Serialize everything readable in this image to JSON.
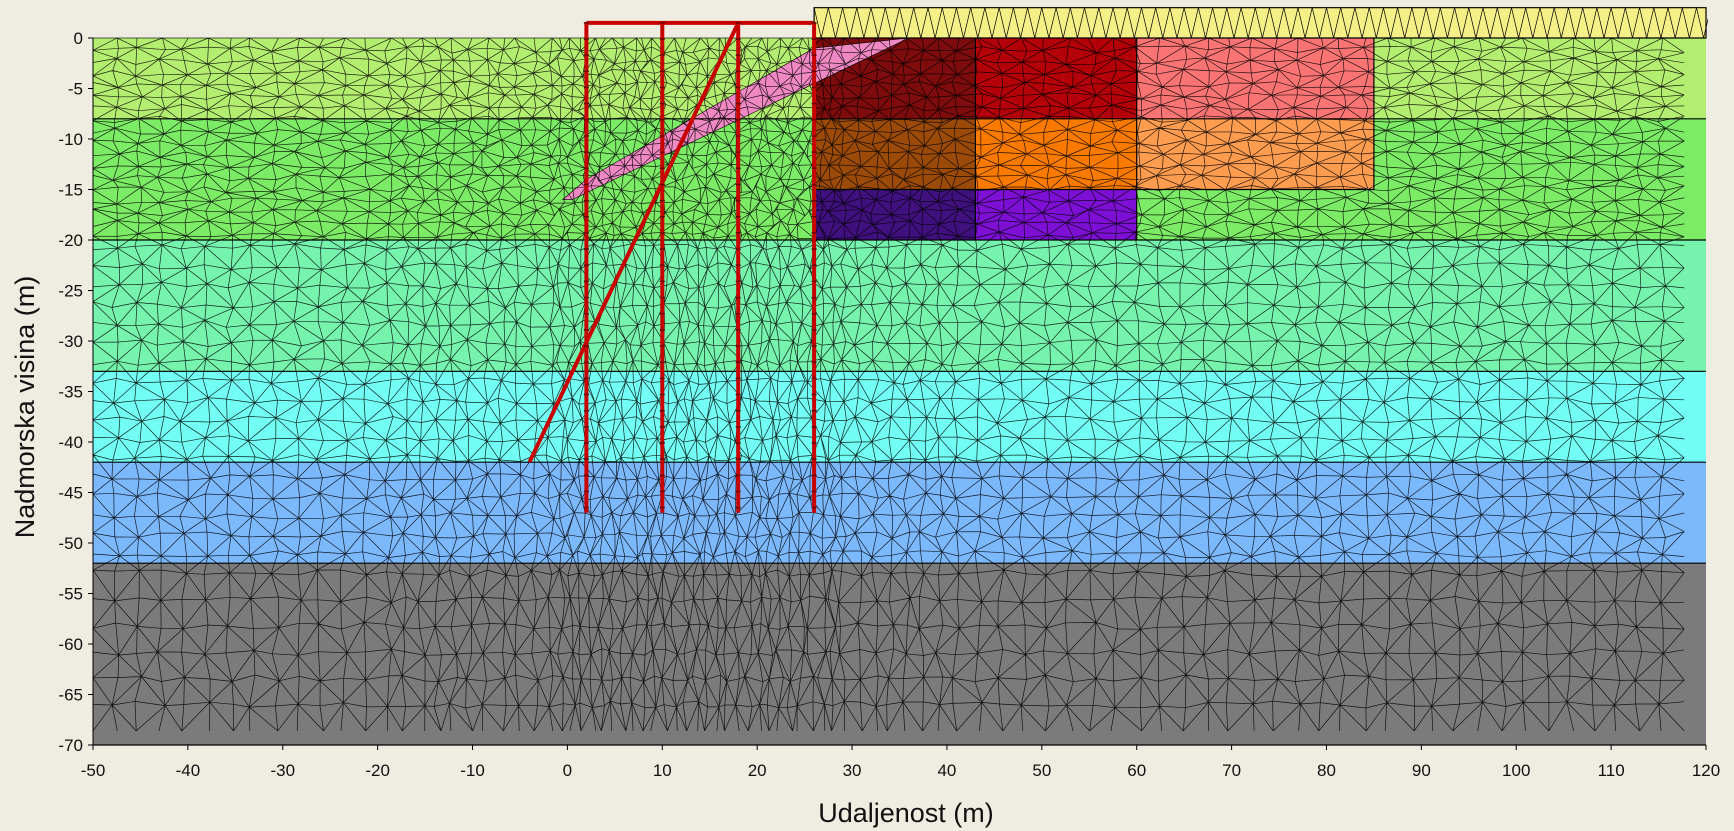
{
  "chart_data": {
    "type": "finite-element-mesh",
    "xlabel": "Udaljenost (m)",
    "ylabel": "Nadmorska visina (m)",
    "xlim": [
      -50,
      120
    ],
    "ylim": [
      -70,
      0
    ],
    "x_ticks": [
      -50,
      -40,
      -30,
      -20,
      -10,
      0,
      10,
      20,
      30,
      40,
      50,
      60,
      70,
      80,
      90,
      100,
      110,
      120
    ],
    "y_ticks": [
      0,
      -5,
      -10,
      -15,
      -20,
      -25,
      -30,
      -35,
      -40,
      -45,
      -50,
      -55,
      -60,
      -65,
      -70
    ],
    "layers": [
      {
        "id": "layer-1",
        "color": "#b4ee70",
        "x": [
          -50,
          120
        ],
        "y": [
          -8,
          0
        ]
      },
      {
        "id": "layer-2",
        "color": "#7ceb66",
        "x": [
          -50,
          120
        ],
        "y": [
          -20,
          -8
        ]
      },
      {
        "id": "layer-3",
        "color": "#76f4ae",
        "x": [
          -50,
          120
        ],
        "y": [
          -33,
          -20
        ]
      },
      {
        "id": "layer-4",
        "color": "#72fef5",
        "x": [
          -50,
          120
        ],
        "y": [
          -42,
          -33
        ]
      },
      {
        "id": "layer-5",
        "color": "#7cb8fc",
        "x": [
          -50,
          120
        ],
        "y": [
          -52,
          -42
        ]
      },
      {
        "id": "layer-6",
        "color": "#7b7b7b",
        "x": [
          -50,
          120
        ],
        "y": [
          -70,
          -52
        ]
      }
    ],
    "fill_blocks": [
      {
        "id": "fill-top",
        "color": "#f5ef88",
        "x": [
          26,
          120
        ],
        "y": [
          0,
          3
        ]
      },
      {
        "id": "fill-1-1",
        "color": "#7e0c0c",
        "x": [
          26,
          43
        ],
        "y": [
          -8,
          0
        ]
      },
      {
        "id": "fill-1-2",
        "color": "#b40008",
        "x": [
          43,
          60
        ],
        "y": [
          -8,
          0
        ]
      },
      {
        "id": "fill-1-3",
        "color": "#fa7474",
        "x": [
          60,
          85
        ],
        "y": [
          -8,
          0
        ]
      },
      {
        "id": "fill-2-1",
        "color": "#9c4a08",
        "x": [
          26,
          43
        ],
        "y": [
          -15,
          -8
        ]
      },
      {
        "id": "fill-2-2",
        "color": "#fa7a00",
        "x": [
          43,
          60
        ],
        "y": [
          -15,
          -8
        ]
      },
      {
        "id": "fill-2-3",
        "color": "#fe9c50",
        "x": [
          60,
          85
        ],
        "y": [
          -15,
          -8
        ]
      },
      {
        "id": "fill-3-1",
        "color": "#40107e",
        "x": [
          26,
          43
        ],
        "y": [
          -20,
          -15
        ]
      },
      {
        "id": "fill-3-2",
        "color": "#7e10d6",
        "x": [
          43,
          60
        ],
        "y": [
          -20,
          -15
        ]
      }
    ],
    "excavation": {
      "color": "#f088c4",
      "polygon": [
        [
          0.5,
          -16
        ],
        [
          36,
          0
        ],
        [
          26,
          -1
        ],
        [
          2,
          -14
        ],
        [
          -0.5,
          -16
        ]
      ]
    },
    "piles": [
      {
        "id": "pile-1",
        "x": 2,
        "y": [
          -47,
          1.5
        ]
      },
      {
        "id": "pile-2",
        "x": 10,
        "y": [
          -47,
          1.5
        ]
      },
      {
        "id": "pile-3",
        "x": 18,
        "y": [
          -47,
          1.5
        ]
      },
      {
        "id": "pile-4",
        "x": 26,
        "y": [
          -47,
          1.5
        ]
      }
    ],
    "pile_cap": {
      "x": [
        2,
        26
      ],
      "y": 1.5
    },
    "inclined_pile": {
      "points": [
        [
          18,
          1.5
        ],
        [
          -4,
          -42
        ]
      ]
    },
    "element_color": "#c80000",
    "mesh_color": "#000000"
  }
}
